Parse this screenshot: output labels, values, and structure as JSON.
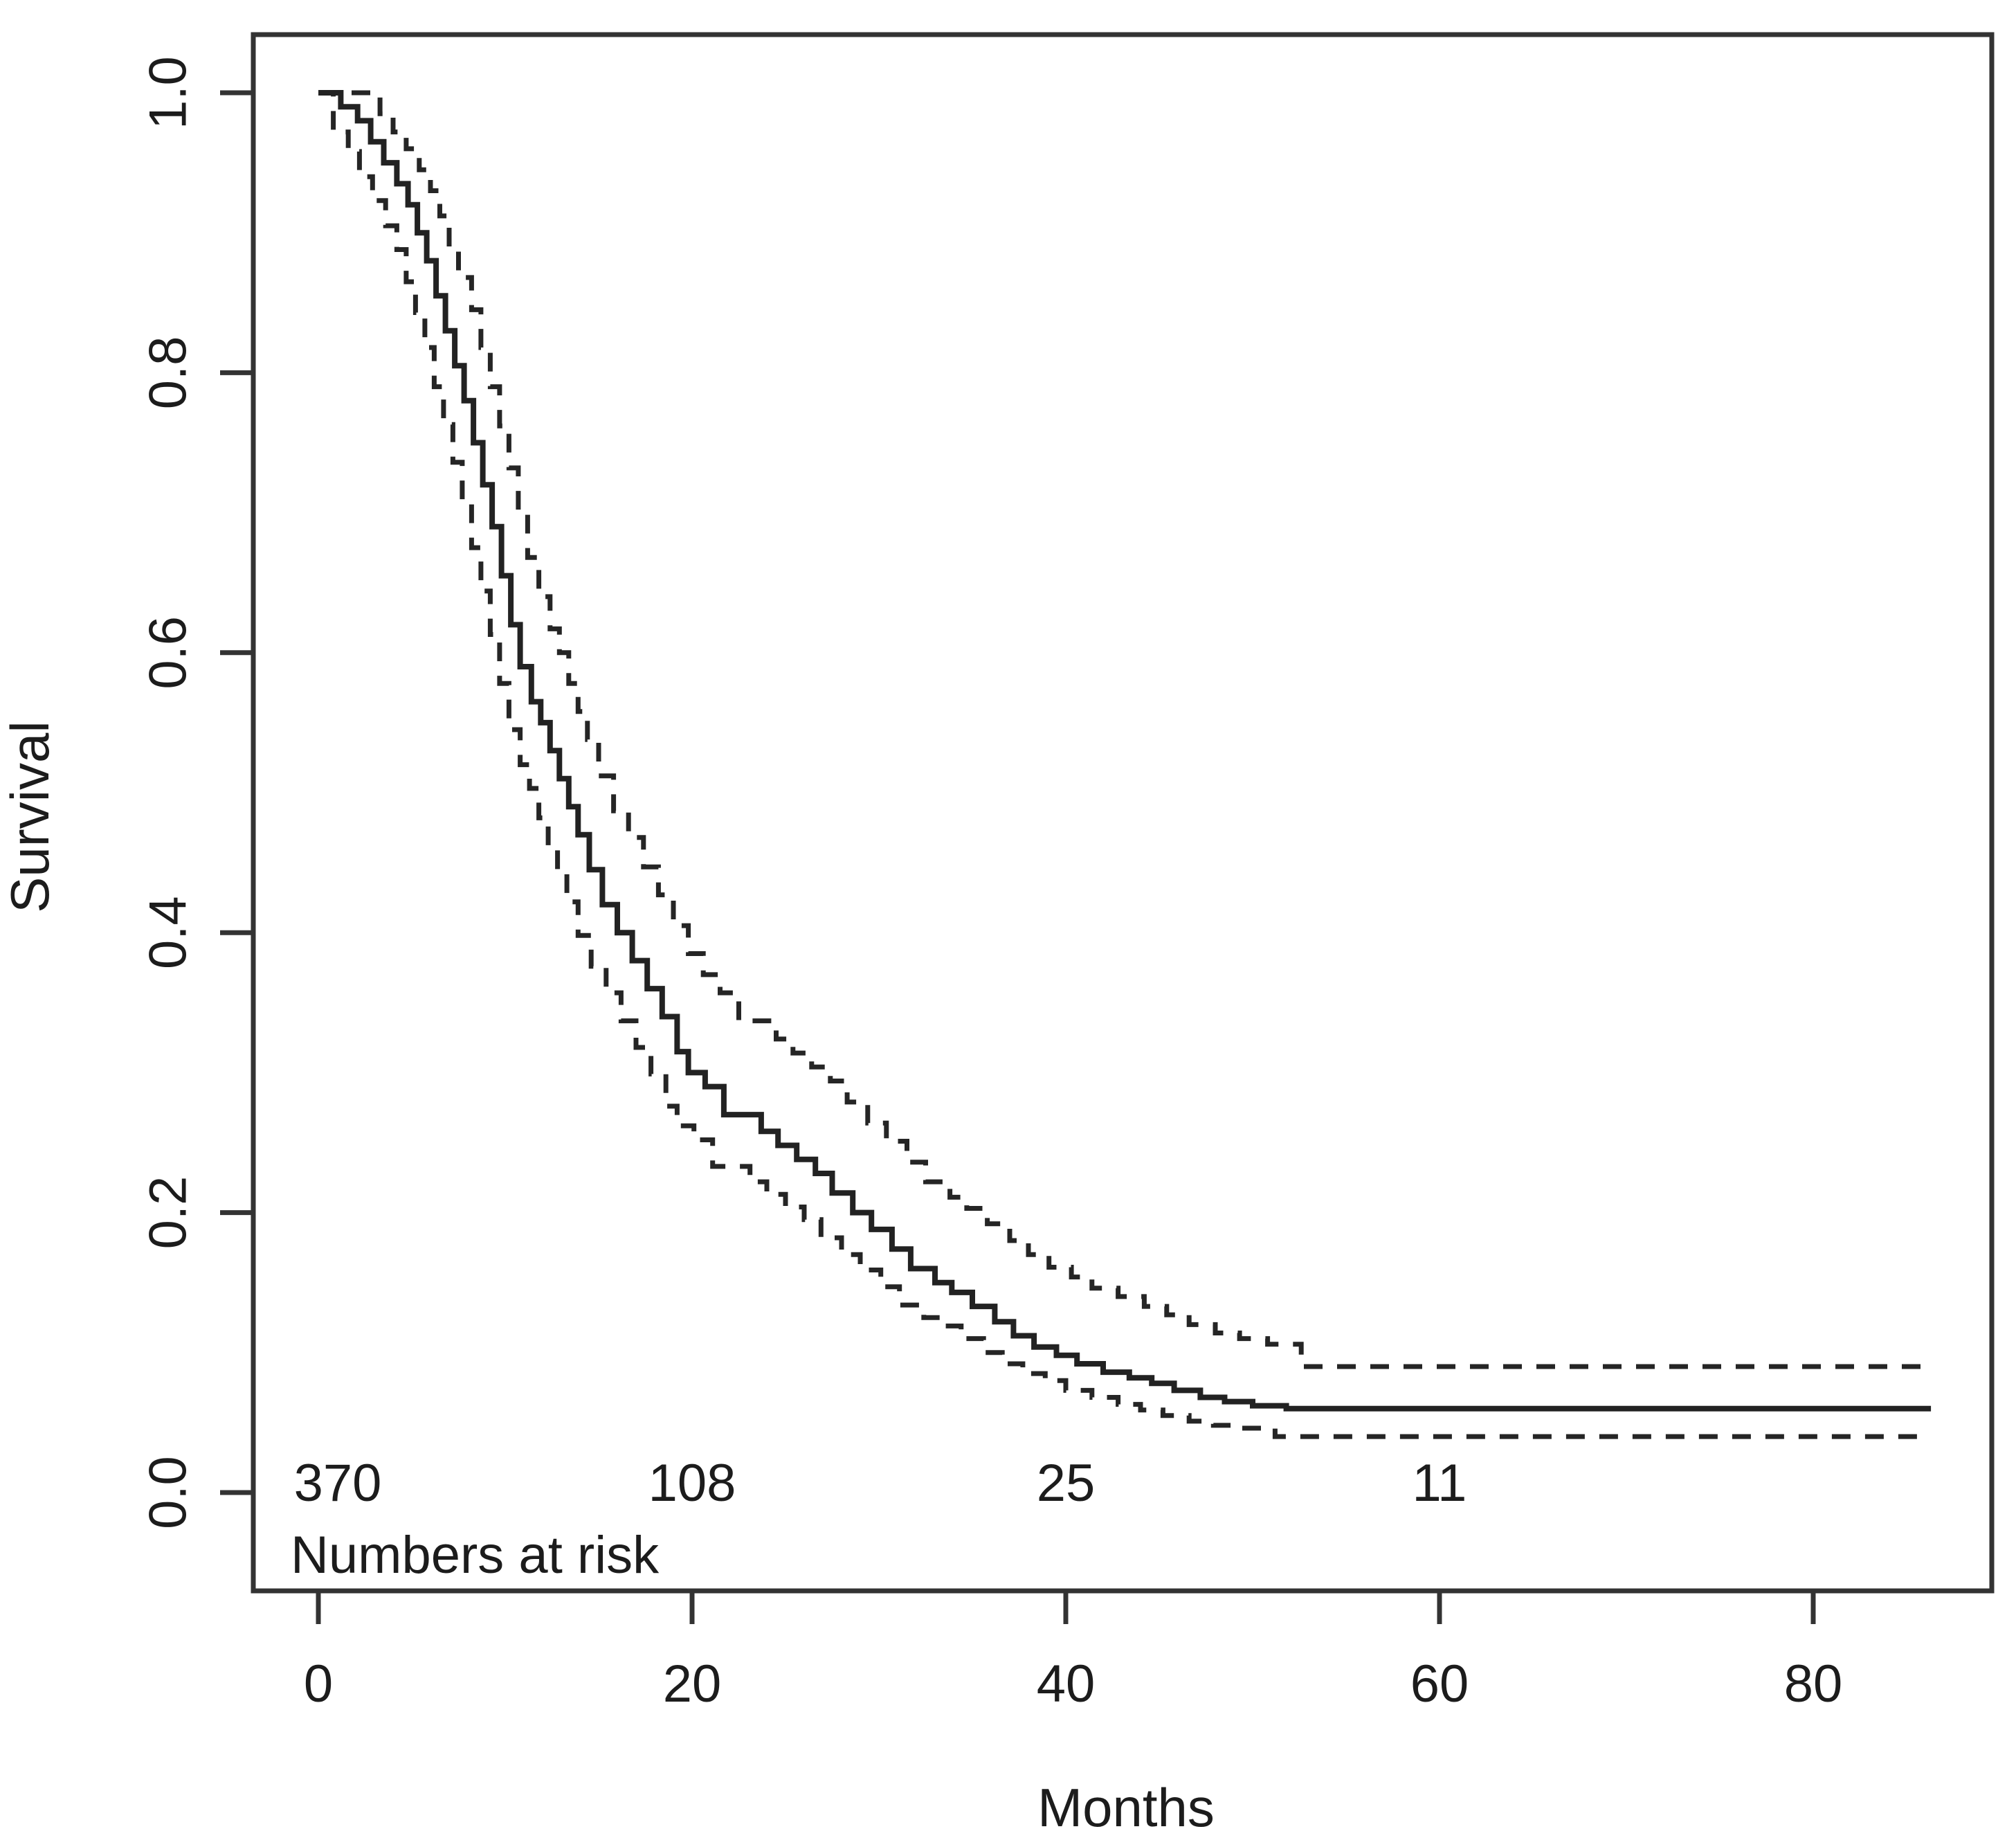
{
  "figure": {
    "background": "#ffffff",
    "line_color": "#252525",
    "axis_color": "#333333"
  },
  "chart_data": {
    "type": "line",
    "subtype": "kaplan-meier-step",
    "title": "",
    "xlabel": "Months",
    "ylabel": "Survival",
    "grid": false,
    "legend_position": "none",
    "x_axis": {
      "range": [
        0,
        90
      ],
      "ticks": [
        {
          "label": "0",
          "value": 0
        },
        {
          "label": "20",
          "value": 20
        },
        {
          "label": "40",
          "value": 40
        },
        {
          "label": "60",
          "value": 60
        },
        {
          "label": "80",
          "value": 80
        }
      ]
    },
    "y_axis": {
      "range": [
        0.0,
        1.0
      ],
      "ticks": [
        {
          "label": "0.0",
          "value": 0.0
        },
        {
          "label": "0.2",
          "value": 0.2
        },
        {
          "label": "0.4",
          "value": 0.4
        },
        {
          "label": "0.6",
          "value": 0.6
        },
        {
          "label": "0.8",
          "value": 0.8
        },
        {
          "label": "1.0",
          "value": 1.0
        }
      ]
    },
    "t_end": 86.3,
    "series": [
      {
        "name": "survival-estimate",
        "style": "solid",
        "points": [
          [
            0,
            1.0
          ],
          [
            1.2,
            0.99
          ],
          [
            2.1,
            0.98
          ],
          [
            2.8,
            0.965
          ],
          [
            3.5,
            0.95
          ],
          [
            4.2,
            0.935
          ],
          [
            4.8,
            0.92
          ],
          [
            5.3,
            0.9
          ],
          [
            5.8,
            0.88
          ],
          [
            6.3,
            0.855
          ],
          [
            6.8,
            0.83
          ],
          [
            7.3,
            0.805
          ],
          [
            7.8,
            0.78
          ],
          [
            8.3,
            0.75
          ],
          [
            8.8,
            0.72
          ],
          [
            9.3,
            0.69
          ],
          [
            9.8,
            0.655
          ],
          [
            10.3,
            0.62
          ],
          [
            10.8,
            0.59
          ],
          [
            11.4,
            0.565
          ],
          [
            11.9,
            0.55
          ],
          [
            12.4,
            0.53
          ],
          [
            12.9,
            0.51
          ],
          [
            13.4,
            0.49
          ],
          [
            13.9,
            0.47
          ],
          [
            14.5,
            0.445
          ],
          [
            15.2,
            0.42
          ],
          [
            16,
            0.4
          ],
          [
            16.8,
            0.38
          ],
          [
            17.6,
            0.36
          ],
          [
            18.4,
            0.34
          ],
          [
            19.2,
            0.315
          ],
          [
            19.8,
            0.3
          ],
          [
            20.7,
            0.29
          ],
          [
            21.7,
            0.27
          ],
          [
            23.7,
            0.258
          ],
          [
            24.6,
            0.248
          ],
          [
            25.6,
            0.238
          ],
          [
            26.6,
            0.228
          ],
          [
            27.5,
            0.214
          ],
          [
            28.6,
            0.2
          ],
          [
            29.6,
            0.188
          ],
          [
            30.7,
            0.174
          ],
          [
            31.7,
            0.16
          ],
          [
            33,
            0.15
          ],
          [
            33.9,
            0.143
          ],
          [
            35,
            0.133
          ],
          [
            36.2,
            0.122
          ],
          [
            37.2,
            0.112
          ],
          [
            38.3,
            0.104
          ],
          [
            39.5,
            0.098
          ],
          [
            40.6,
            0.092
          ],
          [
            42,
            0.086
          ],
          [
            43.4,
            0.082
          ],
          [
            44.6,
            0.078
          ],
          [
            45.8,
            0.073
          ],
          [
            47.2,
            0.068
          ],
          [
            48.5,
            0.065
          ],
          [
            50,
            0.062
          ],
          [
            51.8,
            0.06
          ]
        ]
      },
      {
        "name": "upper-95ci",
        "style": "dashed",
        "points": [
          [
            0,
            1.0
          ],
          [
            3.3,
            0.985
          ],
          [
            4,
            0.972
          ],
          [
            4.7,
            0.96
          ],
          [
            5.4,
            0.945
          ],
          [
            6,
            0.93
          ],
          [
            6.5,
            0.912
          ],
          [
            7,
            0.89
          ],
          [
            7.5,
            0.868
          ],
          [
            8.2,
            0.845
          ],
          [
            8.7,
            0.818
          ],
          [
            9.2,
            0.79
          ],
          [
            9.7,
            0.762
          ],
          [
            10.2,
            0.732
          ],
          [
            10.7,
            0.7
          ],
          [
            11.2,
            0.668
          ],
          [
            11.8,
            0.64
          ],
          [
            12.4,
            0.617
          ],
          [
            12.9,
            0.6
          ],
          [
            13.4,
            0.578
          ],
          [
            13.9,
            0.558
          ],
          [
            14.4,
            0.538
          ],
          [
            15,
            0.512
          ],
          [
            15.8,
            0.487
          ],
          [
            16.6,
            0.468
          ],
          [
            17.4,
            0.447
          ],
          [
            18.2,
            0.427
          ],
          [
            19,
            0.405
          ],
          [
            19.8,
            0.385
          ],
          [
            20.6,
            0.37
          ],
          [
            21.5,
            0.357
          ],
          [
            22.5,
            0.337
          ],
          [
            24.5,
            0.324
          ],
          [
            25.4,
            0.314
          ],
          [
            26.4,
            0.304
          ],
          [
            27.4,
            0.294
          ],
          [
            28.3,
            0.279
          ],
          [
            29.4,
            0.264
          ],
          [
            30.4,
            0.251
          ],
          [
            31.5,
            0.236
          ],
          [
            32.5,
            0.222
          ],
          [
            33.8,
            0.211
          ],
          [
            34.7,
            0.203
          ],
          [
            35.8,
            0.192
          ],
          [
            37,
            0.18
          ],
          [
            38,
            0.17
          ],
          [
            39.1,
            0.161
          ],
          [
            40.3,
            0.154
          ],
          [
            41.4,
            0.146
          ],
          [
            42.8,
            0.14
          ],
          [
            44.2,
            0.133
          ],
          [
            45.4,
            0.127
          ],
          [
            46.6,
            0.12
          ],
          [
            48,
            0.114
          ],
          [
            49.3,
            0.11
          ],
          [
            50.8,
            0.106
          ],
          [
            52.6,
            0.09
          ]
        ]
      },
      {
        "name": "lower-95ci",
        "style": "dashed",
        "points": [
          [
            0,
            1.0
          ],
          [
            0.8,
            0.972
          ],
          [
            1.6,
            0.958
          ],
          [
            2.2,
            0.94
          ],
          [
            2.9,
            0.923
          ],
          [
            3.6,
            0.905
          ],
          [
            4.2,
            0.888
          ],
          [
            4.7,
            0.865
          ],
          [
            5.2,
            0.843
          ],
          [
            5.7,
            0.818
          ],
          [
            6.2,
            0.79
          ],
          [
            6.7,
            0.763
          ],
          [
            7.2,
            0.736
          ],
          [
            7.7,
            0.706
          ],
          [
            8.2,
            0.675
          ],
          [
            8.7,
            0.644
          ],
          [
            9.2,
            0.613
          ],
          [
            9.7,
            0.578
          ],
          [
            10.2,
            0.545
          ],
          [
            10.8,
            0.52
          ],
          [
            11.3,
            0.503
          ],
          [
            11.8,
            0.482
          ],
          [
            12.3,
            0.462
          ],
          [
            12.8,
            0.442
          ],
          [
            13.3,
            0.422
          ],
          [
            13.9,
            0.398
          ],
          [
            14.6,
            0.376
          ],
          [
            15.4,
            0.357
          ],
          [
            16.2,
            0.337
          ],
          [
            17,
            0.318
          ],
          [
            17.8,
            0.299
          ],
          [
            18.6,
            0.276
          ],
          [
            19.2,
            0.262
          ],
          [
            20.1,
            0.252
          ],
          [
            21.1,
            0.233
          ],
          [
            23.1,
            0.222
          ],
          [
            24,
            0.213
          ],
          [
            25,
            0.204
          ],
          [
            26,
            0.195
          ],
          [
            26.9,
            0.182
          ],
          [
            28,
            0.17
          ],
          [
            29,
            0.159
          ],
          [
            30.1,
            0.147
          ],
          [
            31.1,
            0.134
          ],
          [
            32.4,
            0.125
          ],
          [
            33.3,
            0.119
          ],
          [
            34.4,
            0.11
          ],
          [
            35.6,
            0.1
          ],
          [
            36.6,
            0.092
          ],
          [
            37.7,
            0.085
          ],
          [
            38.9,
            0.08
          ],
          [
            40,
            0.073
          ],
          [
            41.4,
            0.068
          ],
          [
            42.8,
            0.063
          ],
          [
            44,
            0.059
          ],
          [
            45.2,
            0.055
          ],
          [
            46.6,
            0.051
          ],
          [
            47.9,
            0.048
          ],
          [
            49.4,
            0.046
          ],
          [
            51.2,
            0.04
          ]
        ]
      }
    ],
    "numbers_at_risk": {
      "label": "Numbers at risk",
      "entries": [
        {
          "time": 0,
          "count": "370"
        },
        {
          "time": 20,
          "count": "108"
        },
        {
          "time": 40,
          "count": "25"
        },
        {
          "time": 60,
          "count": "11"
        }
      ]
    }
  }
}
